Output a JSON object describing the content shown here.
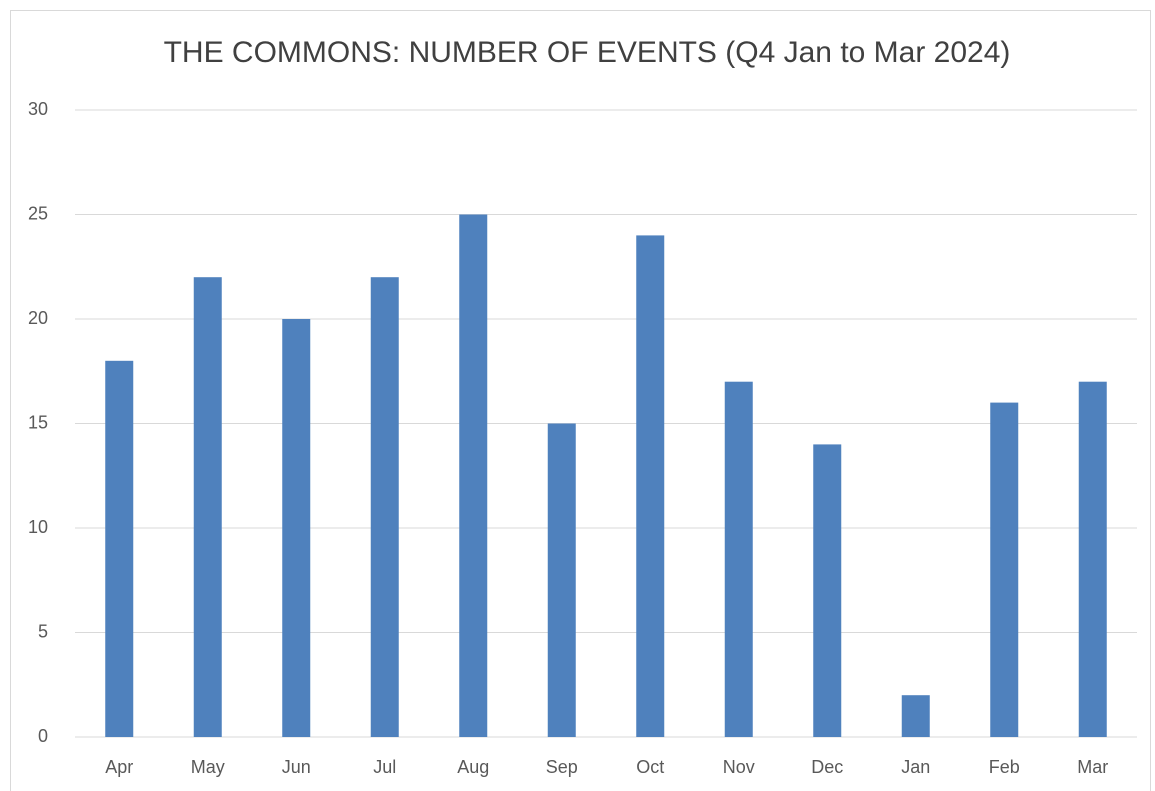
{
  "chart_data": {
    "type": "bar",
    "title": "THE COMMONS: NUMBER OF EVENTS (Q4 Jan to Mar 2024)",
    "categories": [
      "Apr",
      "May",
      "Jun",
      "Jul",
      "Aug",
      "Sep",
      "Oct",
      "Nov",
      "Dec",
      "Jan",
      "Feb",
      "Mar"
    ],
    "values": [
      18,
      22,
      20,
      22,
      25,
      15,
      24,
      17,
      14,
      2,
      16,
      17
    ],
    "color": "#4f81bd",
    "ylim": [
      0,
      30
    ],
    "yticks": [
      0,
      5,
      10,
      15,
      20,
      25,
      30
    ],
    "grid": true
  }
}
